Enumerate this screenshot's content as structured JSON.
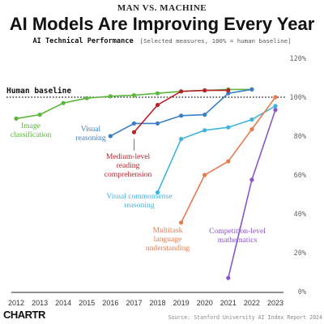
{
  "header": {
    "kicker": "MAN VS. MACHINE",
    "title": "AI Models Are Improving Every Year",
    "subtitle": "AI Technical Performance",
    "subtitle_note": "[Selected measures, 100% = human baseline]"
  },
  "footer": {
    "source": "Source: Stanford University AI Index Report 2024",
    "logo": "CHARTR"
  },
  "chart_data": {
    "type": "line",
    "title": "AI Models Are Improving Every Year",
    "subtitle": "AI Technical Performance [Selected measures, 100% = human baseline]",
    "x_ticks": [
      2012,
      2013,
      2014,
      2015,
      2016,
      2017,
      2018,
      2019,
      2020,
      2021,
      2022,
      2023
    ],
    "y_ticks": [
      0,
      20,
      40,
      60,
      80,
      100,
      120
    ],
    "y_tick_labels": [
      "0%",
      "20%",
      "40%",
      "60%",
      "80%",
      "100%",
      "120%"
    ],
    "xlim": [
      2012,
      2023
    ],
    "ylim": [
      0,
      120
    ],
    "baseline": {
      "value": 100,
      "label": "Human baseline"
    },
    "series": [
      {
        "name": "Image classification",
        "label_lines": [
          "Image",
          "classification"
        ],
        "color": "#5cb83c",
        "x": [
          2012,
          2013,
          2014,
          2015,
          2016,
          2017,
          2018,
          2019,
          2020,
          2021,
          2022
        ],
        "y": [
          89,
          91,
          97,
          99.5,
          100.5,
          101,
          102,
          103,
          103.5,
          104,
          104
        ]
      },
      {
        "name": "Visual reasoning",
        "label_lines": [
          "Visual",
          "reasoning"
        ],
        "color": "#3a7fc4",
        "x": [
          2016,
          2017,
          2018,
          2019,
          2020,
          2021,
          2022
        ],
        "y": [
          80,
          86.5,
          86.5,
          90.5,
          91,
          102,
          104
        ]
      },
      {
        "name": "Medium-level reading comprehension",
        "label_lines": [
          "Medium-level",
          "reading",
          "comprehension"
        ],
        "color": "#b8232b",
        "x": [
          2017,
          2018,
          2019,
          2020,
          2021
        ],
        "y": [
          82,
          96,
          103,
          103.5,
          103.5
        ]
      },
      {
        "name": "Visual commonsense reasoning",
        "label_lines": [
          "Visual commonsense",
          "reasoning"
        ],
        "color": "#3fb3de",
        "x": [
          2018,
          2019,
          2020,
          2021,
          2022,
          2023
        ],
        "y": [
          51,
          78.5,
          83,
          84.5,
          88.5,
          95.5
        ]
      },
      {
        "name": "Multitask language understanding",
        "label_lines": [
          "Multitask",
          "language",
          "understanding"
        ],
        "color": "#e8794a",
        "x": [
          2019,
          2020,
          2021,
          2022,
          2023
        ],
        "y": [
          35.5,
          60,
          67,
          83.5,
          100
        ]
      },
      {
        "name": "Competition-level mathematics",
        "label_lines": [
          "Competition-level",
          "mathematics"
        ],
        "color": "#8b55c6",
        "x": [
          2021,
          2022,
          2023
        ],
        "y": [
          7,
          57.5,
          93.5
        ]
      }
    ],
    "grid": false,
    "legend": "none (inline labels)"
  }
}
